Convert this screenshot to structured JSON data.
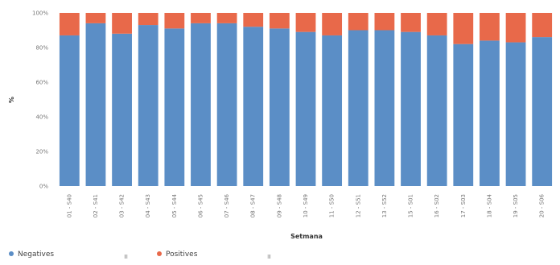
{
  "chart_data": {
    "type": "bar",
    "stacked": true,
    "xlabel": "Setmana",
    "ylabel": "%",
    "ylim": [
      0,
      100
    ],
    "yticks": [
      "0%",
      "20%",
      "40%",
      "60%",
      "80%",
      "100%"
    ],
    "grid": false,
    "legend_position": "bottom-left",
    "categories": [
      "01 - S40",
      "02 - S41",
      "03 - S42",
      "04 - S43",
      "05 - S44",
      "06 - S45",
      "07 - S46",
      "08 - S47",
      "09 - S48",
      "10 - S49",
      "11 - S50",
      "12 - S51",
      "13 - S52",
      "15 - S01",
      "16 - S02",
      "17 - S03",
      "18 - S04",
      "19 - S05",
      "20 - S06"
    ],
    "series": [
      {
        "name": "Negatives",
        "color": "#5b8ec6",
        "values": [
          87,
          94,
          88,
          93,
          91,
          94,
          94,
          92,
          91,
          89,
          87,
          90,
          90,
          89,
          87,
          82,
          84,
          83,
          86
        ]
      },
      {
        "name": "Positives",
        "color": "#e8694a",
        "values": [
          13,
          6,
          12,
          7,
          9,
          6,
          6,
          8,
          9,
          11,
          13,
          10,
          10,
          11,
          13,
          18,
          16,
          17,
          14
        ]
      }
    ]
  },
  "legend": {
    "menu_glyph": "≡",
    "marker_glyph": "●"
  }
}
